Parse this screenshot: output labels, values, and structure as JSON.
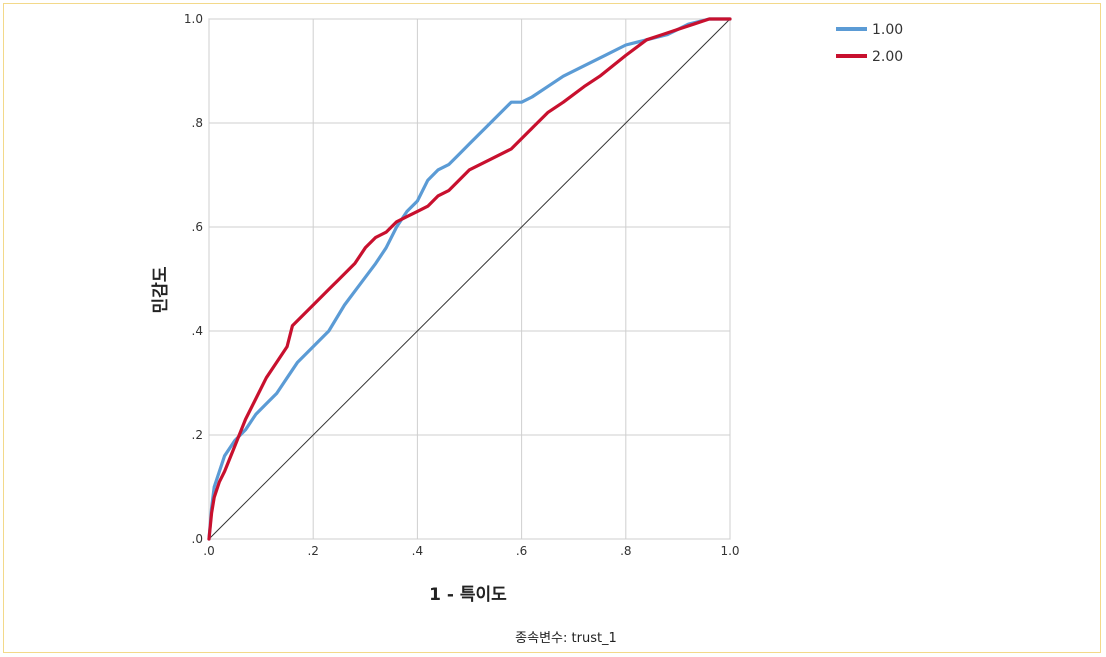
{
  "chart_data": {
    "type": "line",
    "title": "",
    "xlabel": "1 - 특이도",
    "ylabel": "민감도",
    "footer": "종속변수: trust_1",
    "xlim": [
      0,
      1
    ],
    "ylim": [
      0,
      1
    ],
    "grid": true,
    "legend_position": "top-right-outside",
    "x_ticks": [
      ".0",
      ".2",
      ".4",
      ".6",
      ".8",
      "1.0"
    ],
    "y_ticks": [
      ".0",
      ".2",
      ".4",
      ".6",
      ".8",
      "1.0"
    ],
    "series": [
      {
        "name": "1.00",
        "color": "#5b9bd5",
        "x": [
          0,
          0.005,
          0.01,
          0.02,
          0.03,
          0.05,
          0.07,
          0.09,
          0.11,
          0.13,
          0.15,
          0.17,
          0.2,
          0.23,
          0.26,
          0.29,
          0.32,
          0.34,
          0.36,
          0.38,
          0.4,
          0.42,
          0.44,
          0.46,
          0.48,
          0.5,
          0.52,
          0.55,
          0.58,
          0.6,
          0.62,
          0.65,
          0.68,
          0.72,
          0.76,
          0.8,
          0.84,
          0.88,
          0.92,
          0.96,
          1.0
        ],
        "y": [
          0,
          0.06,
          0.1,
          0.13,
          0.16,
          0.19,
          0.21,
          0.24,
          0.26,
          0.28,
          0.31,
          0.34,
          0.37,
          0.4,
          0.45,
          0.49,
          0.53,
          0.56,
          0.6,
          0.63,
          0.65,
          0.69,
          0.71,
          0.72,
          0.74,
          0.76,
          0.78,
          0.81,
          0.84,
          0.84,
          0.85,
          0.87,
          0.89,
          0.91,
          0.93,
          0.95,
          0.96,
          0.97,
          0.99,
          1.0,
          1.0
        ]
      },
      {
        "name": "2.00",
        "color": "#c8102e",
        "x": [
          0,
          0.005,
          0.01,
          0.02,
          0.03,
          0.05,
          0.07,
          0.09,
          0.11,
          0.13,
          0.15,
          0.16,
          0.18,
          0.2,
          0.23,
          0.25,
          0.28,
          0.3,
          0.32,
          0.34,
          0.36,
          0.38,
          0.4,
          0.42,
          0.44,
          0.46,
          0.5,
          0.54,
          0.58,
          0.6,
          0.62,
          0.65,
          0.68,
          0.72,
          0.75,
          0.8,
          0.84,
          0.87,
          0.9,
          0.93,
          0.96,
          1.0
        ],
        "y": [
          0,
          0.05,
          0.08,
          0.11,
          0.13,
          0.18,
          0.23,
          0.27,
          0.31,
          0.34,
          0.37,
          0.41,
          0.43,
          0.45,
          0.48,
          0.5,
          0.53,
          0.56,
          0.58,
          0.59,
          0.61,
          0.62,
          0.63,
          0.64,
          0.66,
          0.67,
          0.71,
          0.73,
          0.75,
          0.77,
          0.79,
          0.82,
          0.84,
          0.87,
          0.89,
          0.93,
          0.96,
          0.97,
          0.98,
          0.99,
          1.0,
          1.0
        ]
      }
    ]
  }
}
